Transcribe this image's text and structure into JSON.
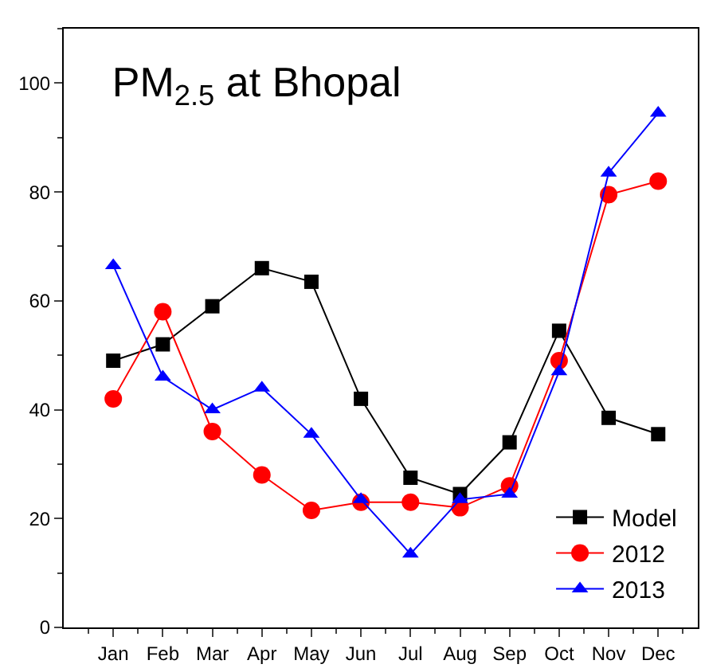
{
  "chart_data": {
    "type": "line",
    "title": "PM$_{2.5}$ at Bhopal",
    "categories": [
      "Jan",
      "Feb",
      "Mar",
      "Apr",
      "May",
      "Jun",
      "Jul",
      "Aug",
      "Sep",
      "Oct",
      "Nov",
      "Dec"
    ],
    "series": [
      {
        "name": "Model",
        "color": "#000000",
        "marker": "square",
        "values": [
          49,
          52,
          59,
          66,
          63.5,
          42,
          27.5,
          24.5,
          34,
          54.5,
          38.5,
          35.5
        ]
      },
      {
        "name": "2012",
        "color": "#ff0000",
        "marker": "circle",
        "values": [
          42,
          58,
          36,
          28,
          21.5,
          23,
          23,
          22,
          26,
          49,
          79.5,
          82
        ]
      },
      {
        "name": "2013",
        "color": "#0000ff",
        "marker": "triangle",
        "values": [
          66.5,
          46,
          40,
          44,
          35.5,
          23.5,
          13.5,
          23.5,
          24.5,
          47,
          83.5,
          94.5
        ]
      }
    ],
    "ylim": [
      0,
      110
    ],
    "yticks": [
      0,
      20,
      40,
      60,
      80,
      100
    ],
    "grid": false,
    "legend": "bottom right",
    "line_style": "solid"
  }
}
